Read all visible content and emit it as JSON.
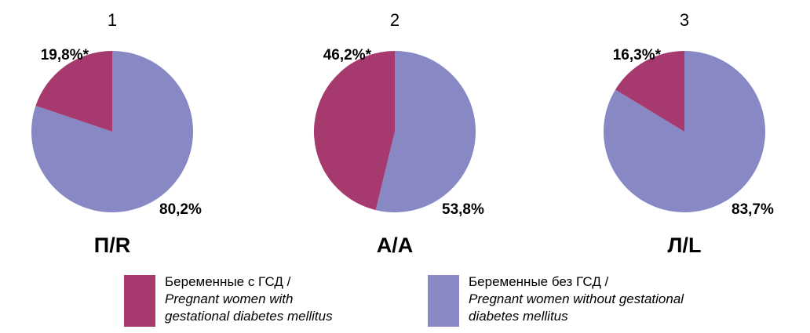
{
  "chart_data": {
    "type": "pie",
    "colors": {
      "gdm": "#A63A6E",
      "no_gdm": "#8888C4"
    },
    "series_keys": [
      "gdm",
      "no_gdm"
    ],
    "charts": [
      {
        "number": "1",
        "title": "П/R",
        "gdm": 19.8,
        "no_gdm": 80.2,
        "gdm_label": "19,8%*",
        "no_gdm_label": "80,2%"
      },
      {
        "number": "2",
        "title": "А/А",
        "gdm": 46.2,
        "no_gdm": 53.8,
        "gdm_label": "46,2%*",
        "no_gdm_label": "53,8%"
      },
      {
        "number": "3",
        "title": "Л/L",
        "gdm": 16.3,
        "no_gdm": 83.7,
        "gdm_label": "16,3%*",
        "no_gdm_label": "83,7%"
      }
    ]
  },
  "legend": {
    "gdm": {
      "ru": "Беременные с ГСД /",
      "en1": "Pregnant women with",
      "en2": "gestational diabetes mellitus"
    },
    "no_gdm": {
      "ru": "Беременные без ГСД /",
      "en1": "Pregnant women without gestational",
      "en2": "diabetes mellitus"
    }
  }
}
